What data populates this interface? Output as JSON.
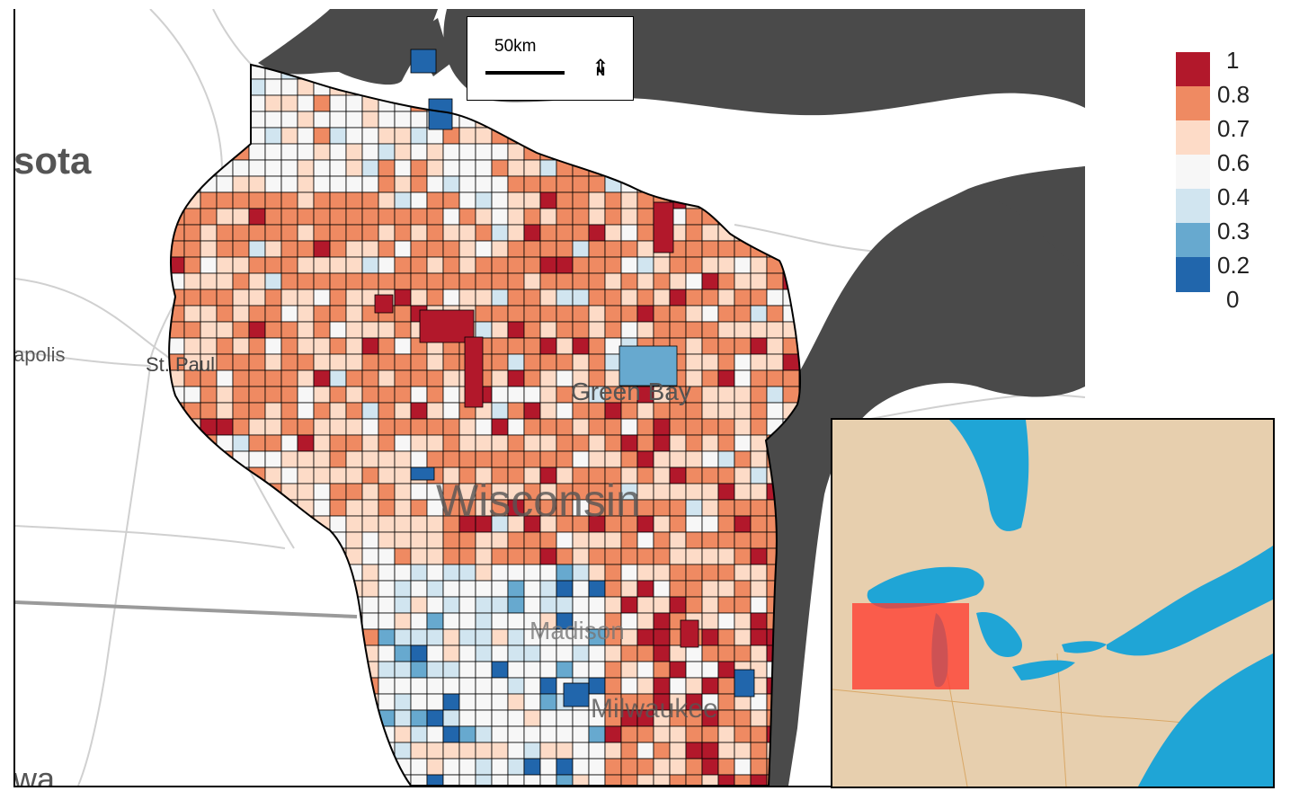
{
  "map": {
    "scale_label": "50km",
    "north_symbol": "N",
    "places": {
      "sota": "sota",
      "apolis": "apolis",
      "st_paul": "St. Paul",
      "green_bay": "Green Bay",
      "wisconsin": "Wisconsin",
      "madison": "Madison",
      "milwaukee": "Milwaukee",
      "wa": "wa"
    },
    "colors": {
      "water": "#4a4a4a",
      "roads": "#c8c8c8",
      "boundary": "#000000"
    }
  },
  "legend": {
    "items": [
      {
        "label": "1",
        "color": "#b2182b"
      },
      {
        "label": "0.8",
        "color": "#ef8a62"
      },
      {
        "label": "0.7",
        "color": "#fddbc7"
      },
      {
        "label": "0.6",
        "color": "#f7f7f7"
      },
      {
        "label": "0.4",
        "color": "#d1e5f0"
      },
      {
        "label": "0.3",
        "color": "#67a9cf"
      },
      {
        "label": "0.2",
        "color": "#2166ac"
      },
      {
        "label": "0",
        "color": ""
      }
    ]
  },
  "inset": {
    "highlight_color": "#ff3b30",
    "water_color": "#1fa5d6",
    "land_color": "#e7cfae"
  }
}
